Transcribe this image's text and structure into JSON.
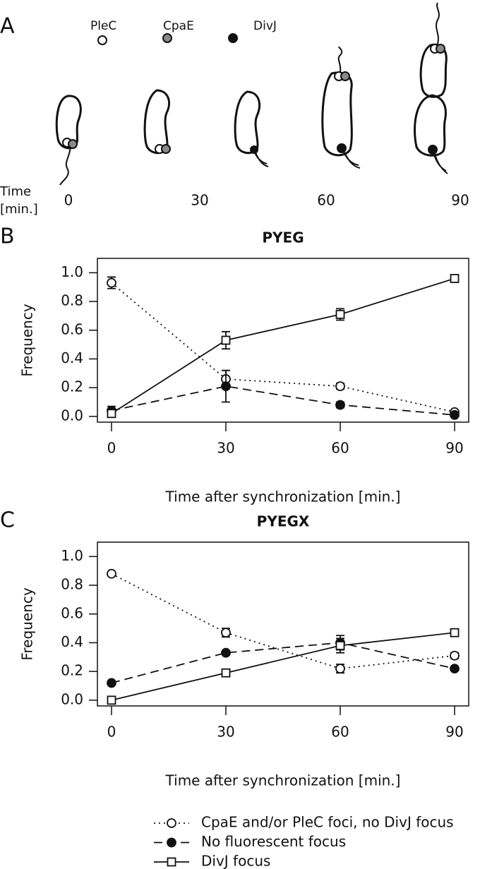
{
  "panel_a": {
    "letter": "A",
    "markers": [
      {
        "label": "PleC",
        "color": "#ffffff"
      },
      {
        "label": "CpaE",
        "color": "#8a8a8a"
      },
      {
        "label": "DivJ",
        "color": "#111111"
      }
    ],
    "time_label": [
      "Time",
      "[min.]"
    ],
    "times": [
      "0",
      "30",
      "60",
      "90"
    ]
  },
  "chart_data": [
    {
      "type": "line",
      "panel": "B",
      "title": "PYEG",
      "x_label": "Time after synchronization [min.]",
      "y_label": "Frequency",
      "x": [
        0,
        30,
        60,
        90
      ],
      "xlim": [
        -3.7,
        93.7
      ],
      "xticks": [
        0,
        30,
        60,
        90
      ],
      "ylim": [
        -0.04,
        1.1
      ],
      "yticks": [
        {
          "value": 0,
          "label": "0.0"
        },
        {
          "value": 0.2,
          "label": "0.2"
        },
        {
          "value": 0.4,
          "label": "0.4"
        },
        {
          "value": 0.6,
          "label": "0.6"
        },
        {
          "value": 0.8,
          "label": "0.8"
        },
        {
          "value": 1,
          "label": "1.0"
        }
      ],
      "series": [
        {
          "name": "CpaE and/or PleC foci, no DivJ focus",
          "color": "#111111",
          "marker": "open-circle",
          "dash": "dotted",
          "values": [
            0.93,
            0.26,
            0.21,
            0.03
          ],
          "errors": [
            0.04,
            0.06,
            0.02,
            0.01
          ]
        },
        {
          "name": "No fluorescent focus",
          "color": "#111111",
          "marker": "filled-circle",
          "dash": "dashed",
          "values": [
            0.04,
            0.21,
            0.08,
            0.01
          ],
          "errors": [
            0.03,
            0.11,
            0.02,
            0.01
          ]
        },
        {
          "name": "DivJ focus",
          "color": "#111111",
          "marker": "open-square",
          "dash": "solid",
          "values": [
            0.02,
            0.53,
            0.71,
            0.96
          ],
          "errors": [
            0.02,
            0.06,
            0.04,
            0.01
          ]
        }
      ]
    },
    {
      "type": "line",
      "panel": "C",
      "title": "PYEGX",
      "x_label": "Time after synchronization [min.]",
      "y_label": "Frequency",
      "x": [
        0,
        30,
        60,
        90
      ],
      "xlim": [
        -3.7,
        93.7
      ],
      "xticks": [
        0,
        30,
        60,
        90
      ],
      "ylim": [
        -0.04,
        1.1
      ],
      "yticks": [
        {
          "value": 0,
          "label": "0.0"
        },
        {
          "value": 0.2,
          "label": "0.2"
        },
        {
          "value": 0.4,
          "label": "0.4"
        },
        {
          "value": 0.6,
          "label": "0.6"
        },
        {
          "value": 0.8,
          "label": "0.8"
        },
        {
          "value": 1,
          "label": "1.0"
        }
      ],
      "series": [
        {
          "name": "CpaE and/or PleC foci, no DivJ focus",
          "color": "#111111",
          "marker": "open-circle",
          "dash": "dotted",
          "values": [
            0.88,
            0.47,
            0.22,
            0.31
          ],
          "errors": [
            0.01,
            0.03,
            0.03,
            0.02
          ]
        },
        {
          "name": "No fluorescent focus",
          "color": "#111111",
          "marker": "filled-circle",
          "dash": "dashed",
          "values": [
            0.12,
            0.33,
            0.4,
            0.22
          ],
          "errors": [
            0.01,
            0.01,
            0.05,
            0.01
          ]
        },
        {
          "name": "DivJ focus",
          "color": "#111111",
          "marker": "open-square",
          "dash": "solid",
          "values": [
            0.0,
            0.19,
            0.38,
            0.47
          ],
          "errors": [
            0.01,
            0.02,
            0.05,
            0.02
          ]
        }
      ]
    }
  ]
}
